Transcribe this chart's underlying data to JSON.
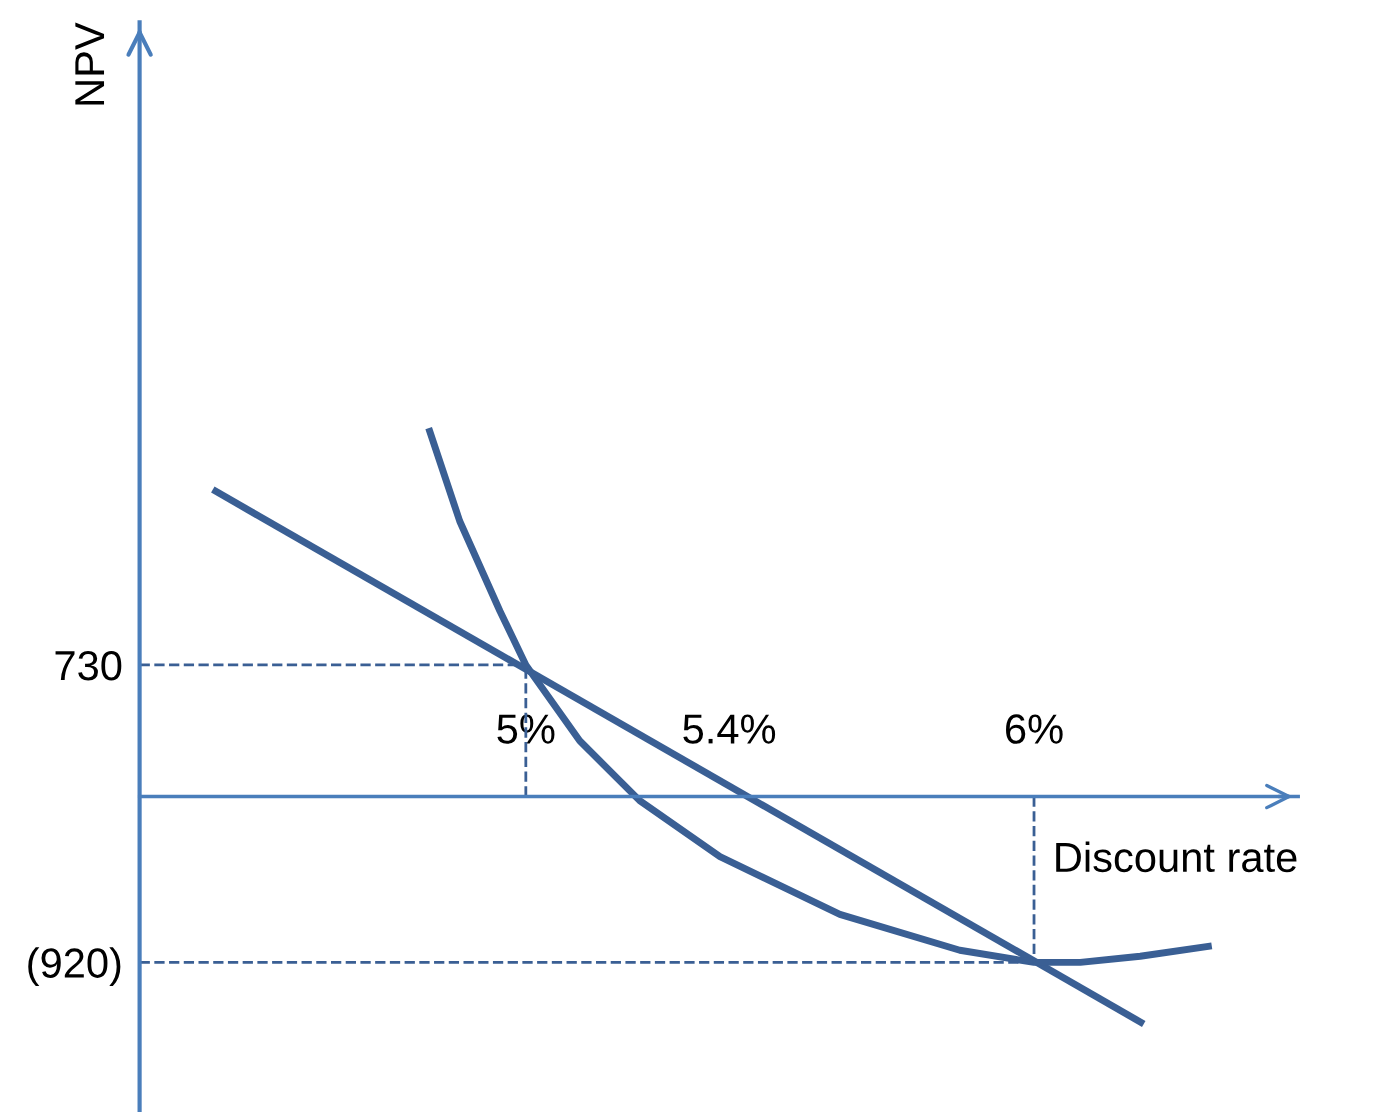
{
  "chart_data": {
    "type": "line",
    "xlabel": "Discount rate",
    "ylabel": "NPV",
    "xlim": [
      4.24,
      6.52
    ],
    "ylim": [
      -1750,
      4295
    ],
    "yticks": [
      730,
      {
        "value": -920,
        "label": "(920)"
      }
    ],
    "xticks": [
      {
        "value": 5,
        "label": "5%"
      },
      {
        "value": 5.4,
        "label": "5.4%"
      },
      {
        "value": 6,
        "label": "6%"
      }
    ],
    "grid": false,
    "marker": "none",
    "line_style": "solid",
    "series": [
      {
        "color": "#3a5f94",
        "x": [
          4.39,
          6.21
        ],
        "values": [
          1693,
          -1252
        ]
      },
      {
        "color": "#3a5f94",
        "x": [
          4.811,
          4.87,
          4.949,
          5,
          5.106,
          5.224,
          5.382,
          5.618,
          5.854,
          6,
          6.091,
          6.209,
          6.343
        ],
        "values": [
          2025,
          1527,
          1029,
          730,
          309,
          -23,
          -333,
          -654,
          -853,
          -920,
          -920,
          -886,
          -831
        ]
      }
    ],
    "ref_lines": [
      {
        "axis": "y",
        "value": 730,
        "color": "#3a5f94",
        "line_style": "dashed"
      },
      {
        "axis": "x",
        "value": 5,
        "color": "#3a5f94",
        "line_style": "dashed"
      },
      {
        "axis": "y",
        "value": -920,
        "color": "#3a5f94",
        "line_style": "dashed"
      },
      {
        "axis": "x",
        "value": 6,
        "color": "#3a5f94",
        "line_style": "dashed"
      }
    ]
  }
}
